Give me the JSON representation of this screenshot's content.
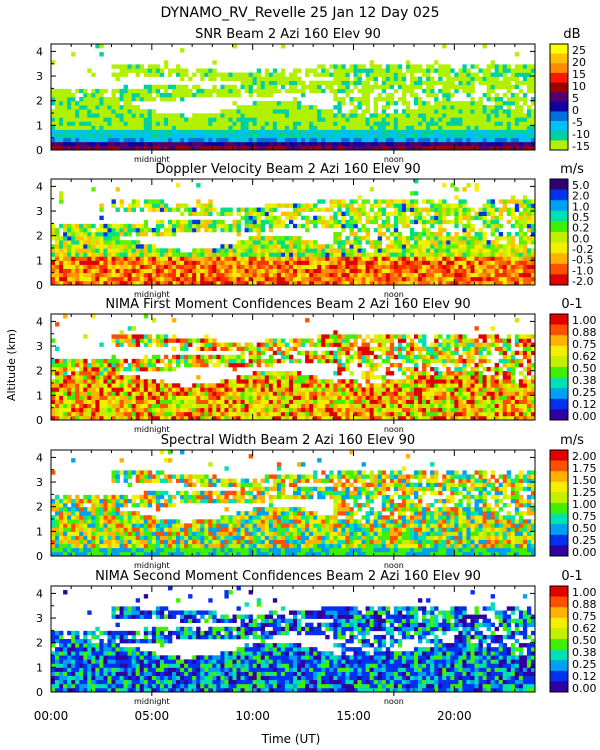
{
  "header": {
    "line1": "DYNAMO_RV_Revelle  25 Jan 12 Day 025"
  },
  "colors": {
    "snr": [
      "#b0f000",
      "#00d0a0",
      "#00c0f0",
      "#0070e0",
      "#1000a0",
      "#500070",
      "#a00000",
      "#ff1800",
      "#ff8c00",
      "#ffc000",
      "#ffff00"
    ],
    "conf": [
      "#3000a0",
      "#0030f0",
      "#00a0f0",
      "#00e0b0",
      "#40f000",
      "#c0f000",
      "#f0f000",
      "#ffb000",
      "#ff5000",
      "#e00000"
    ]
  },
  "chart_data": {
    "type": "heatmap",
    "figure_title": "DYNAMO_RV_Revelle  25 Jan 12 Day 025",
    "xlabel": "Time (UT)",
    "ylabel": "Altitude (km)",
    "x_range": [
      0,
      24
    ],
    "x_ticks": [
      "00:00",
      "05:00",
      "10:00",
      "15:00",
      "20:00"
    ],
    "x_tick_hours": [
      0,
      5,
      10,
      15,
      20
    ],
    "markers": [
      {
        "label": "midnight",
        "hour": 5.0
      },
      {
        "label": "noon",
        "hour": 17.0
      }
    ],
    "y_range": [
      0,
      4.3
    ],
    "y_ticks": [
      "0",
      "1",
      "2",
      "3",
      "4"
    ],
    "y_tick_values": [
      0,
      1,
      2,
      3,
      4
    ],
    "panels": [
      {
        "title": "SNR Beam 2 Azi 160 Elev 90",
        "unit": "dB",
        "scale": "snr",
        "colorbar_labels": [
          "25",
          "20",
          "15",
          "10",
          "5",
          "0",
          "-5",
          "-10",
          "-15"
        ]
      },
      {
        "title": "Doppler Velocity Beam 2 Azi 160 Elev 90",
        "unit": "m/s",
        "scale": "vel",
        "colorbar_labels": [
          "5.0",
          "2.0",
          "1.0",
          "0.5",
          "0.2",
          "0.0",
          "-0.2",
          "-0.5",
          "-1.0",
          "-2.0"
        ]
      },
      {
        "title": "NIMA First Moment Confidences Beam 2 Azi 160 Elev 90",
        "unit": "0-1",
        "scale": "conf",
        "colorbar_labels": [
          "1.00",
          "0.88",
          "0.75",
          "0.62",
          "0.50",
          "0.38",
          "0.25",
          "0.12",
          "0.00"
        ]
      },
      {
        "title": "Spectral Width Beam 2 Azi 160 Elev 90",
        "unit": "m/s",
        "scale": "width",
        "colorbar_labels": [
          "2.00",
          "1.75",
          "1.50",
          "1.25",
          "1.00",
          "0.75",
          "0.50",
          "0.25",
          "0.00"
        ]
      },
      {
        "title": "NIMA Second Moment Confidences Beam 2 Azi 160 Elev 90",
        "unit": "0-1",
        "scale": "conf2",
        "colorbar_labels": [
          "1.00",
          "0.88",
          "0.75",
          "0.62",
          "0.50",
          "0.38",
          "0.25",
          "0.12",
          "0.00"
        ]
      }
    ]
  }
}
